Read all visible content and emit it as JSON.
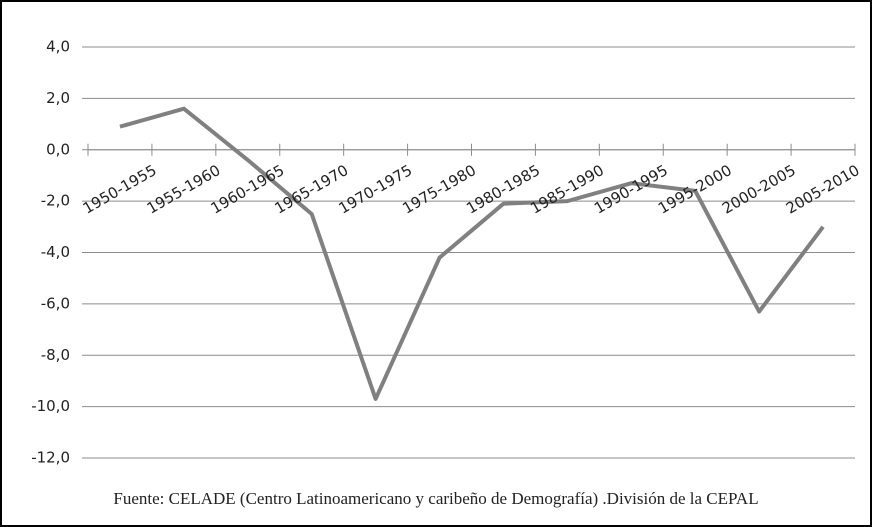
{
  "chart_data": {
    "type": "line",
    "categories": [
      "1950-1955",
      "1955-1960",
      "1960-1965",
      "1965-1970",
      "1970-1975",
      "1975-1980",
      "1980-1985",
      "1985-1990",
      "1990-1995",
      "1995-2000",
      "2000-2005",
      "2005-2010"
    ],
    "series": [
      {
        "color": "#808080",
        "values": [
          0.9,
          1.6,
          -0.4,
          -2.5,
          -9.7,
          -4.2,
          -2.1,
          -2.0,
          -1.3,
          -1.6,
          -6.3,
          -3.0
        ]
      }
    ],
    "ylim": [
      -12,
      4
    ],
    "yticks": [
      {
        "value": -12,
        "label": "-12,0"
      },
      {
        "value": -10,
        "label": "-10,0"
      },
      {
        "value": -8,
        "label": "-8,0"
      },
      {
        "value": -6,
        "label": "-6,0"
      },
      {
        "value": -4,
        "label": "-4,0"
      },
      {
        "value": -2,
        "label": "-2,0"
      },
      {
        "value": 0,
        "label": "0,0"
      },
      {
        "value": 2,
        "label": "2,0"
      },
      {
        "value": 4,
        "label": "4,0"
      }
    ],
    "grid": true,
    "source": "Fuente: CELADE (Centro Latinoamericano y caribeño de Demografía) .División de la CEPAL"
  }
}
